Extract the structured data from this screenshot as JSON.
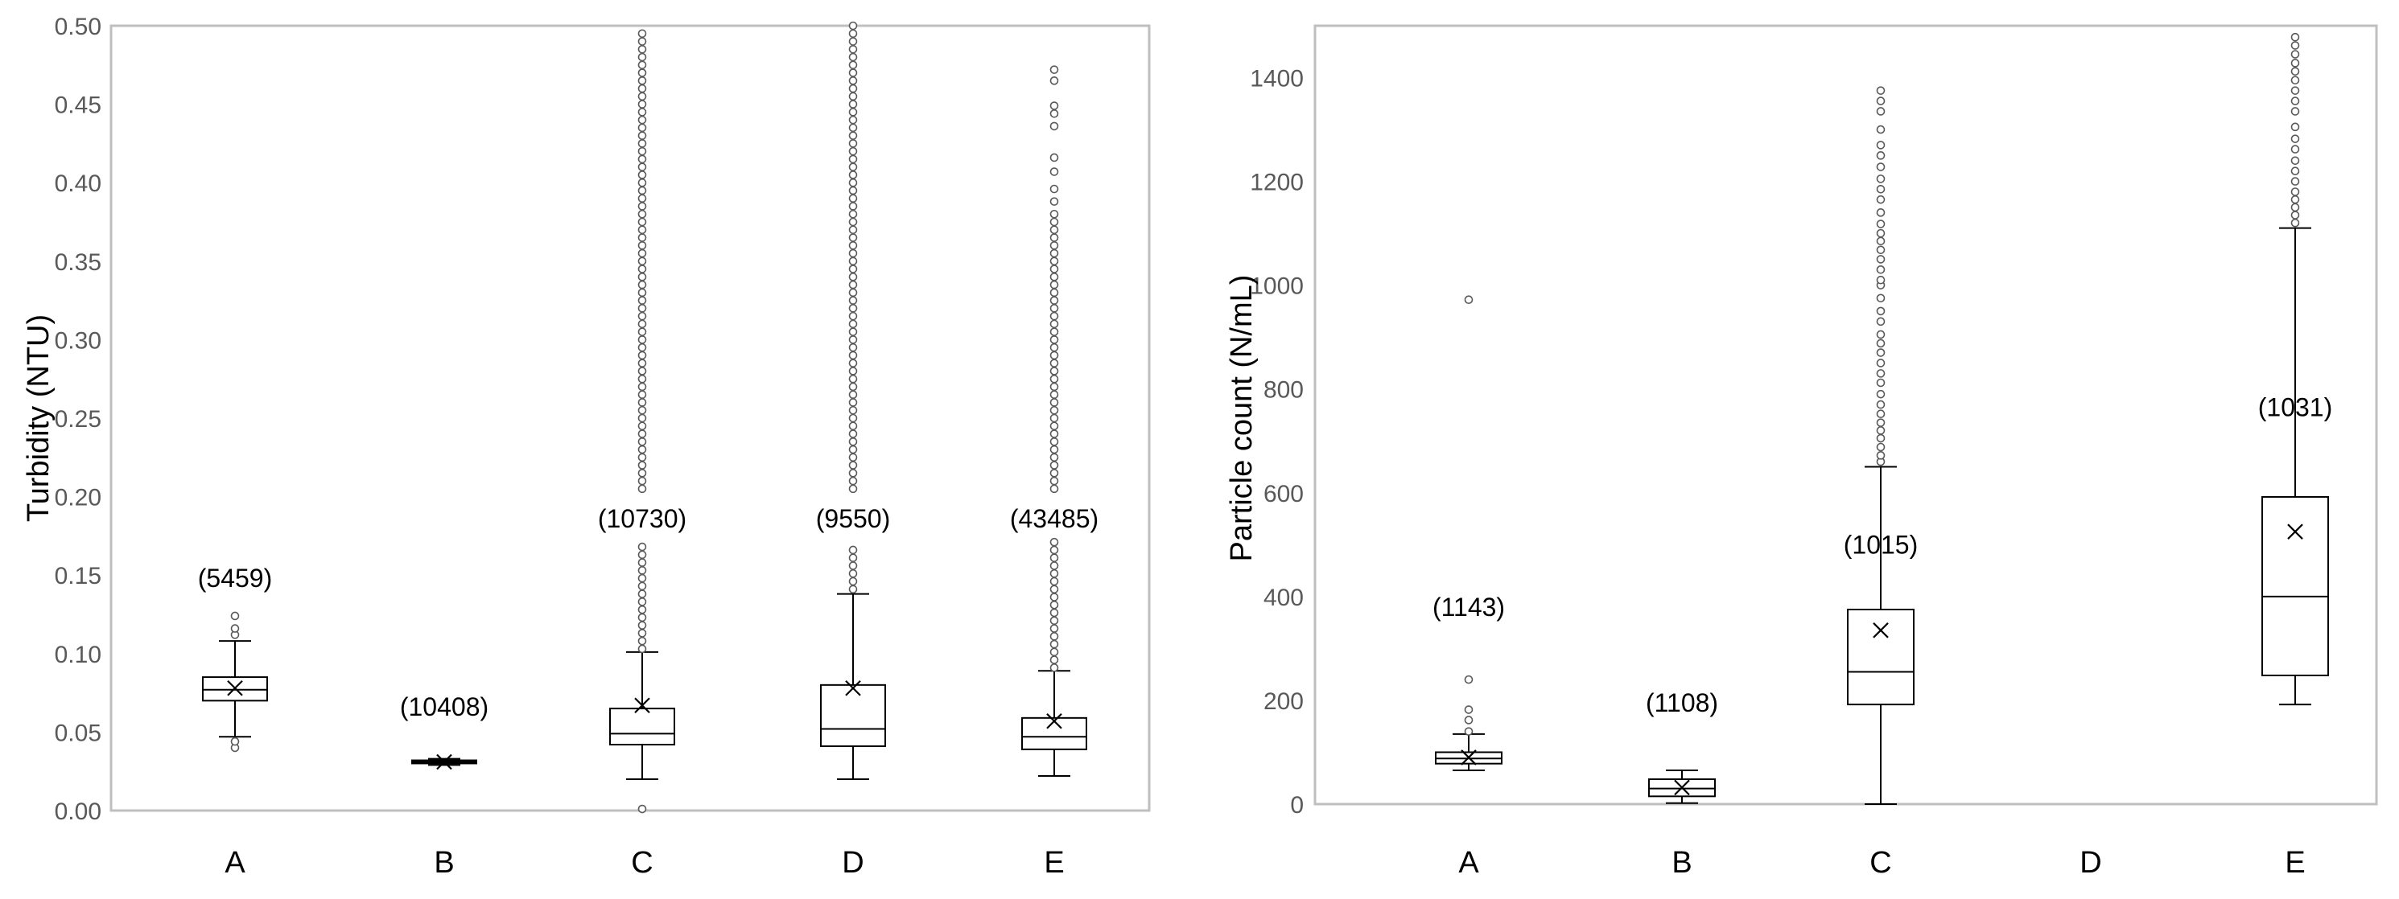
{
  "chart_data": [
    {
      "type": "box",
      "title": "",
      "xlabel": "",
      "ylabel": "Turbidity (NTU)",
      "ylim": [
        0,
        0.5
      ],
      "yticks": [
        0.0,
        0.05,
        0.1,
        0.15,
        0.2,
        0.25,
        0.3,
        0.35,
        0.4,
        0.45,
        0.5
      ],
      "ytick_labels": [
        "0.00",
        "0.05",
        "0.10",
        "0.15",
        "0.20",
        "0.25",
        "0.30",
        "0.35",
        "0.40",
        "0.45",
        "0.50"
      ],
      "categories": [
        "A",
        "B",
        "C",
        "D",
        "E"
      ],
      "grid": false,
      "boxes": [
        {
          "category": "A",
          "n_label": "(5459)",
          "n_y": 0.148,
          "min": 0.047,
          "q1": 0.07,
          "median": 0.077,
          "q3": 0.085,
          "max": 0.108,
          "mean": 0.078,
          "outliers": [
            0.04,
            0.044,
            0.112,
            0.116,
            0.124
          ]
        },
        {
          "category": "B",
          "n_label": "(10408)",
          "n_y": 0.066,
          "min": 0.029,
          "q1": 0.03,
          "median": 0.031,
          "q3": 0.032,
          "max": 0.033,
          "mean": 0.031,
          "outliers": []
        },
        {
          "category": "C",
          "n_label": "(10730)",
          "n_y": 0.186,
          "min": 0.02,
          "q1": 0.042,
          "median": 0.049,
          "q3": 0.065,
          "max": 0.101,
          "mean": 0.067,
          "outliers": [
            0.001
          ],
          "outlier_dense_range": [
            0.103,
            0.498
          ],
          "outlier_spacing": 0.005,
          "outlier_gap": [
            0.172,
            0.205
          ]
        },
        {
          "category": "D",
          "n_label": "(9550)",
          "n_y": 0.186,
          "min": 0.02,
          "q1": 0.041,
          "median": 0.052,
          "q3": 0.08,
          "max": 0.138,
          "mean": 0.078,
          "outliers": [],
          "outlier_dense_range": [
            0.141,
            0.5
          ],
          "outlier_spacing": 0.005,
          "outlier_gap": [
            0.168,
            0.205
          ]
        },
        {
          "category": "E",
          "n_label": "(43485)",
          "n_y": 0.186,
          "min": 0.022,
          "q1": 0.039,
          "median": 0.047,
          "q3": 0.059,
          "max": 0.089,
          "mean": 0.057,
          "outliers": [
            0.388,
            0.396,
            0.407,
            0.416,
            0.436,
            0.444,
            0.449,
            0.465,
            0.472
          ],
          "outlier_dense_range": [
            0.091,
            0.381
          ],
          "outlier_spacing": 0.005,
          "outlier_gap": [
            0.172,
            0.205
          ]
        }
      ]
    },
    {
      "type": "box",
      "title": "",
      "xlabel": "",
      "ylabel": "Particle count (N/mL)",
      "ylim": [
        0,
        1500
      ],
      "yticks": [
        0,
        200,
        400,
        600,
        800,
        1000,
        1200,
        1400
      ],
      "ytick_labels": [
        "0",
        "200",
        "400",
        "600",
        "800",
        "1000",
        "1200",
        "1400"
      ],
      "categories": [
        "A",
        "B",
        "C",
        "D",
        "E"
      ],
      "grid": false,
      "boxes": [
        {
          "category": "A",
          "n_label": "(1143)",
          "n_y": 380,
          "min": 65,
          "q1": 78,
          "median": 88,
          "q3": 100,
          "max": 135,
          "mean": 90,
          "outliers": [
            140,
            162,
            182,
            240,
            972
          ]
        },
        {
          "category": "B",
          "n_label": "(1108)",
          "n_y": 195,
          "min": 2,
          "q1": 15,
          "median": 30,
          "q3": 48,
          "max": 65,
          "mean": 32,
          "outliers": []
        },
        {
          "category": "C",
          "n_label": "(1015)",
          "n_y": 500,
          "min": 0,
          "q1": 192,
          "median": 255,
          "q3": 375,
          "max": 650,
          "mean": 335,
          "outliers": [
            660,
            672,
            688,
            705,
            720,
            735,
            752,
            770,
            790,
            812,
            830,
            850,
            870,
            888,
            905,
            930,
            950,
            975,
            1000,
            1010,
            1030,
            1050,
            1068,
            1085,
            1100,
            1118,
            1140,
            1165,
            1185,
            1205,
            1228,
            1250,
            1270,
            1300,
            1335,
            1355,
            1375
          ]
        },
        {
          "category": "D",
          "n_label": "",
          "n_y": 0,
          "min": null,
          "q1": null,
          "median": null,
          "q3": null,
          "max": null,
          "mean": null,
          "outliers": []
        },
        {
          "category": "E",
          "n_label": "(1031)",
          "n_y": 765,
          "min": 192,
          "q1": 248,
          "median": 400,
          "q3": 592,
          "max": 1110,
          "mean": 525,
          "outliers": [
            1120,
            1135,
            1150,
            1165,
            1180,
            1200,
            1220,
            1240,
            1262,
            1282,
            1305,
            1335,
            1355,
            1375,
            1395,
            1412,
            1428,
            1445,
            1462,
            1478
          ]
        }
      ]
    }
  ]
}
